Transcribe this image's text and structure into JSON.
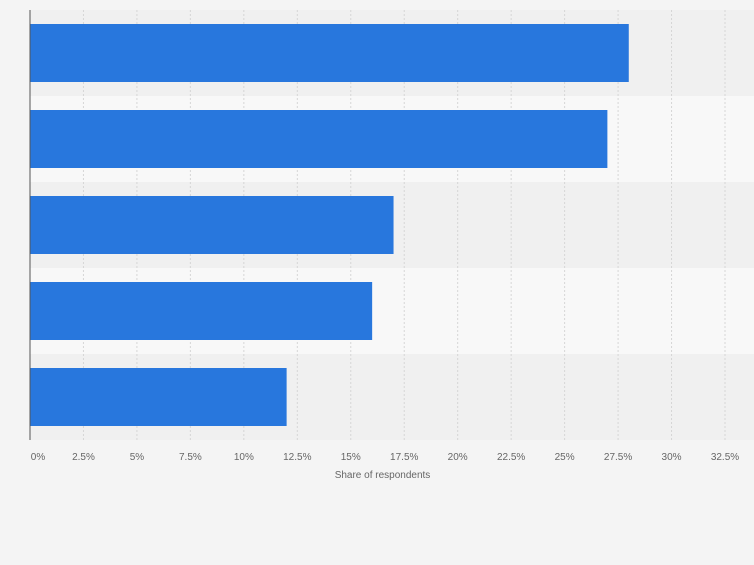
{
  "chart_data": {
    "type": "bar",
    "orientation": "horizontal",
    "title": "",
    "xlabel": "Share of respondents",
    "ylabel": "",
    "categories": [
      "",
      "",
      "",
      "",
      ""
    ],
    "values": [
      28,
      27,
      17,
      16,
      12
    ],
    "xlim": [
      0,
      32.5
    ],
    "xticks": [
      0,
      2.5,
      5,
      7.5,
      10,
      12.5,
      15,
      17.5,
      20,
      22.5,
      25,
      27.5,
      30,
      32.5
    ],
    "xtick_labels": [
      "0%",
      "2.5%",
      "5%",
      "7.5%",
      "10%",
      "12.5%",
      "15%",
      "17.5%",
      "20%",
      "22.5%",
      "25%",
      "27.5%",
      "30%",
      "32.5%"
    ],
    "grid": true,
    "legend": "none",
    "colors": {
      "bar": "#2877dd",
      "band_dark": "#f0f0f0",
      "band_light": "#f8f8f8",
      "grid": "#d6d6d6",
      "axis": "#555555",
      "tick_text": "#666666",
      "background": "#f4f4f4"
    }
  }
}
